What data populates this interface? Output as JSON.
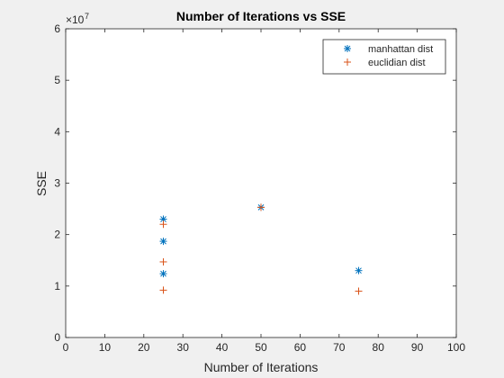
{
  "chart_data": {
    "type": "scatter",
    "title": "Number of Iterations vs SSE",
    "xlabel": "Number of Iterations",
    "ylabel": "SSE",
    "xlim": [
      0,
      100
    ],
    "ylim": [
      0,
      6
    ],
    "y_scale_exponent": {
      "base": "×10",
      "power": "7"
    },
    "xticks": [
      0,
      10,
      20,
      30,
      40,
      50,
      60,
      70,
      80,
      90,
      100
    ],
    "yticks": [
      0,
      1,
      2,
      3,
      4,
      5,
      6
    ],
    "grid": false,
    "legend": {
      "position": "top-right"
    },
    "series": [
      {
        "name": "manhattan dist",
        "marker": "asterisk",
        "color": "#0072BD",
        "points": [
          {
            "x": 25,
            "y": 2.3
          },
          {
            "x": 25,
            "y": 1.87
          },
          {
            "x": 25,
            "y": 1.24
          },
          {
            "x": 50,
            "y": 2.53
          },
          {
            "x": 75,
            "y": 1.3
          }
        ]
      },
      {
        "name": "euclidian dist",
        "marker": "plus",
        "color": "#D95319",
        "points": [
          {
            "x": 25,
            "y": 2.2
          },
          {
            "x": 25,
            "y": 1.47
          },
          {
            "x": 25,
            "y": 0.92
          },
          {
            "x": 50,
            "y": 2.53
          },
          {
            "x": 75,
            "y": 0.9
          }
        ]
      }
    ]
  }
}
